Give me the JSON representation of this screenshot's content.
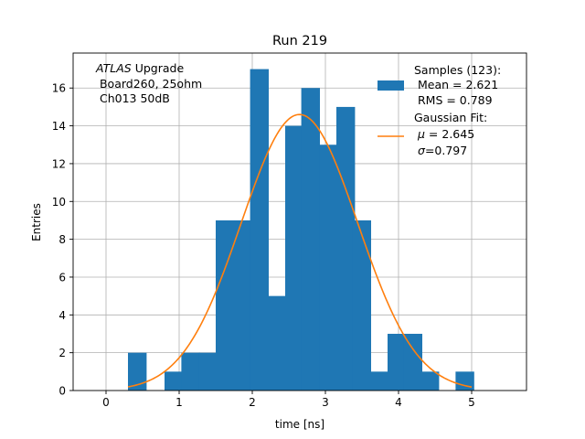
{
  "chart_data": {
    "type": "bar",
    "title": "Run 219",
    "xlabel": "time [ns]",
    "ylabel": "Entries",
    "xlim": [
      -0.45,
      5.75
    ],
    "ylim": [
      0,
      17.85
    ],
    "xticks": [
      0,
      1,
      2,
      3,
      4,
      5
    ],
    "yticks": [
      0,
      2,
      4,
      6,
      8,
      10,
      12,
      14,
      16
    ],
    "grid": true,
    "bin_width": 0.25,
    "bins": [
      {
        "x0": 0.3,
        "count": 2
      },
      {
        "x0": 0.55,
        "count": 0
      },
      {
        "x0": 0.8,
        "count": 1
      },
      {
        "x0": 1.03,
        "count": 2
      },
      {
        "x0": 1.27,
        "count": 2
      },
      {
        "x0": 1.5,
        "count": 9
      },
      {
        "x0": 1.75,
        "count": 9
      },
      {
        "x0": 1.97,
        "count": 17
      },
      {
        "x0": 2.2,
        "count": 5
      },
      {
        "x0": 2.45,
        "count": 14
      },
      {
        "x0": 2.67,
        "count": 16
      },
      {
        "x0": 2.92,
        "count": 13
      },
      {
        "x0": 3.15,
        "count": 15
      },
      {
        "x0": 3.37,
        "count": 9
      },
      {
        "x0": 3.6,
        "count": 1
      },
      {
        "x0": 3.85,
        "count": 3
      },
      {
        "x0": 4.07,
        "count": 3
      },
      {
        "x0": 4.3,
        "count": 1
      },
      {
        "x0": 4.55,
        "count": 0
      },
      {
        "x0": 4.78,
        "count": 1
      }
    ],
    "fit": {
      "mu": 2.645,
      "sigma": 0.797,
      "amplitude": 14.6,
      "x_range": [
        0.3,
        5.0
      ]
    },
    "series_colors": {
      "samples": "#1f77b4",
      "fit": "#ff7f0e"
    },
    "annotation": {
      "experiment": "ATLAS",
      "experiment_suffix": " Upgrade",
      "line2": " Board260, 25ohm",
      "line3": " Ch013 50dB"
    },
    "legend": {
      "position": "top-right",
      "samples_title": "Samples (123):",
      "samples_mean": " Mean = 2.621",
      "samples_rms": " RMS = 0.789",
      "fit_title": "Gaussian Fit:",
      "fit_mu_symbol": "μ",
      "fit_mu_value": " = 2.645",
      "fit_sigma_symbol": "σ",
      "fit_sigma_value": "=0.797"
    }
  }
}
